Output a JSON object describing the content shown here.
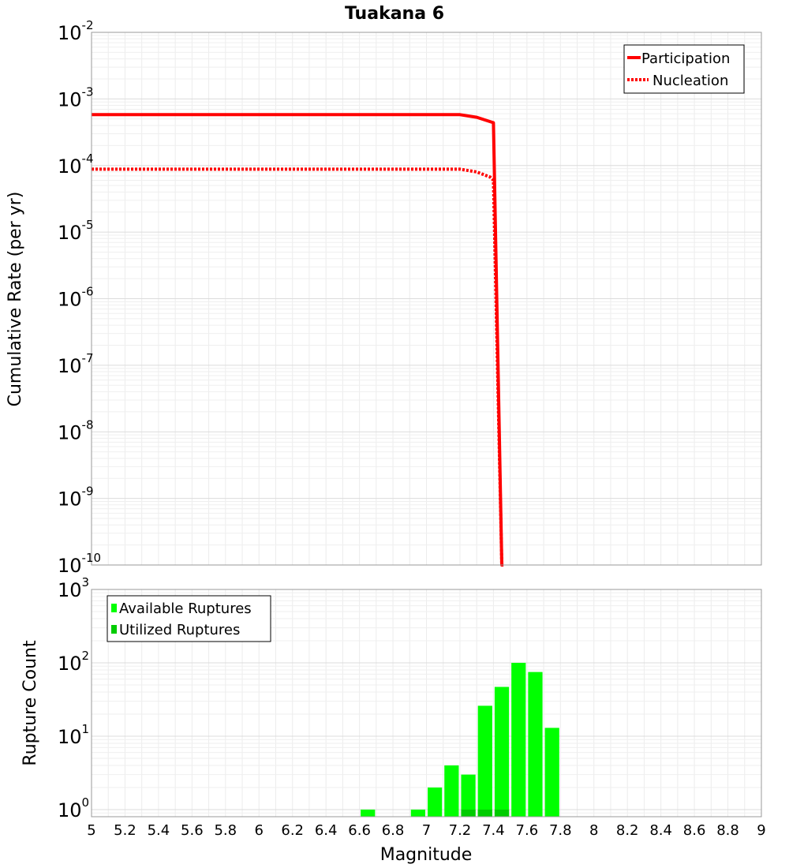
{
  "title": "Tuakana 6",
  "chart_data": [
    {
      "type": "line",
      "title": "Tuakana 6",
      "xlabel": "Magnitude",
      "ylabel": "Cumulative Rate (per yr)",
      "yscale": "log",
      "xlim": [
        5,
        9
      ],
      "ylim": [
        1e-10,
        0.01
      ],
      "ytick_exponents": [
        -10,
        -9,
        -8,
        -7,
        -6,
        -5,
        -4,
        -3,
        -2
      ],
      "legend_position": "top-right",
      "series": [
        {
          "name": "Participation",
          "style": "solid",
          "color": "#ff0000",
          "x": [
            5.0,
            7.2,
            7.3,
            7.4,
            7.45,
            7.46
          ],
          "y": [
            0.00058,
            0.00058,
            0.00053,
            0.00044,
            1e-10,
            1e-10
          ]
        },
        {
          "name": "Nucleation",
          "style": "dotted",
          "color": "#ff0000",
          "x": [
            5.0,
            7.2,
            7.3,
            7.38,
            7.4,
            7.45
          ],
          "y": [
            8.8e-05,
            8.8e-05,
            8e-05,
            6.7e-05,
            6e-05,
            1e-10
          ]
        }
      ]
    },
    {
      "type": "bar",
      "ylabel": "Rupture Count",
      "xlabel": "Magnitude",
      "yscale": "log",
      "ylim": [
        0.8,
        1000
      ],
      "ytick_exponents": [
        0,
        1,
        2,
        3
      ],
      "legend_position": "top-left",
      "bin_width": 0.1,
      "series": [
        {
          "name": "Available Ruptures",
          "color": "#00ff00",
          "x": [
            6.65,
            6.95,
            7.05,
            7.15,
            7.25,
            7.35,
            7.45,
            7.55,
            7.65,
            7.75
          ],
          "values": [
            1,
            1,
            2,
            4,
            3,
            26,
            47,
            100,
            75,
            13
          ]
        },
        {
          "name": "Utilized Ruptures",
          "color": "#00cc00",
          "x": [
            7.25,
            7.35,
            7.45
          ],
          "values": [
            1,
            1,
            1
          ]
        }
      ]
    }
  ],
  "xticks": [
    "5",
    "5.2",
    "5.4",
    "5.6",
    "5.8",
    "6",
    "6.2",
    "6.4",
    "6.6",
    "6.8",
    "7",
    "7.2",
    "7.4",
    "7.6",
    "7.8",
    "8",
    "8.2",
    "8.4",
    "8.6",
    "8.8",
    "9"
  ],
  "tick_base": "10"
}
